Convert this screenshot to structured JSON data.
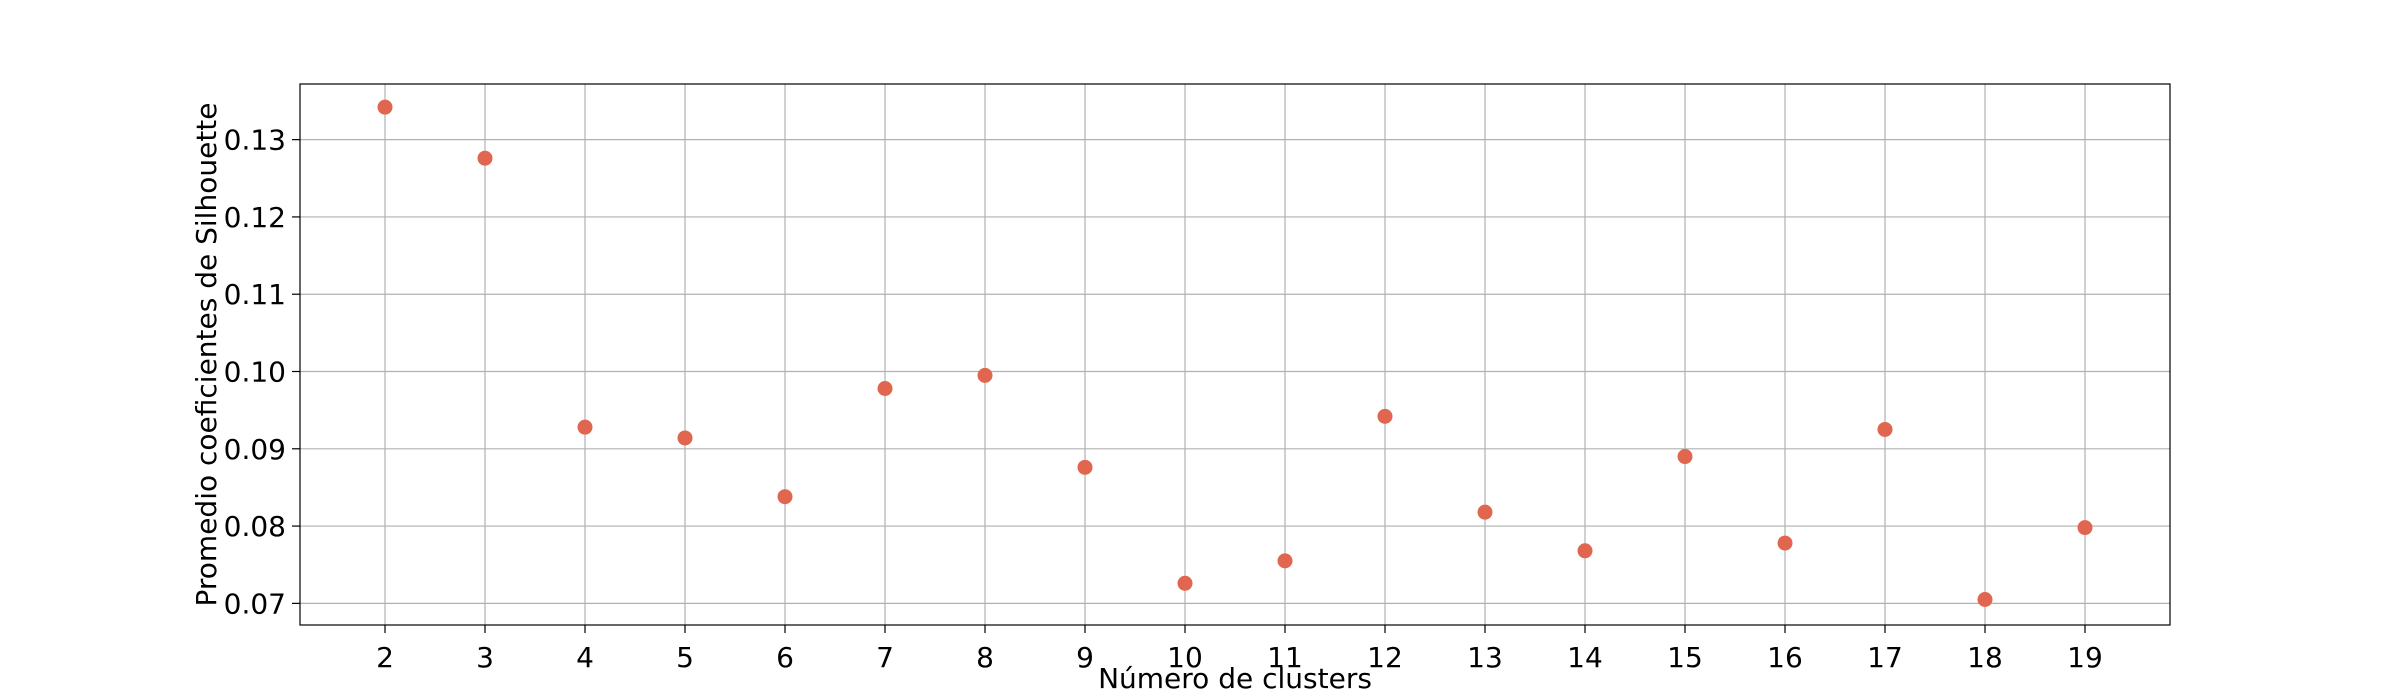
{
  "chart_data": {
    "type": "scatter",
    "title": "",
    "xlabel": "Número de clusters",
    "ylabel": "Promedio coeficientes de Silhouette",
    "x": [
      2,
      3,
      4,
      5,
      6,
      7,
      8,
      9,
      10,
      11,
      12,
      13,
      14,
      15,
      16,
      17,
      18,
      19
    ],
    "y": [
      0.1342,
      0.1276,
      0.0928,
      0.0914,
      0.0838,
      0.0978,
      0.0995,
      0.0876,
      0.0726,
      0.0755,
      0.0942,
      0.0818,
      0.0768,
      0.089,
      0.0778,
      0.0925,
      0.0705,
      0.0798
    ],
    "xticks": [
      "2",
      "3",
      "4",
      "5",
      "6",
      "7",
      "8",
      "9",
      "10",
      "11",
      "12",
      "13",
      "14",
      "15",
      "16",
      "17",
      "18",
      "19"
    ],
    "yticks": [
      "0.07",
      "0.08",
      "0.09",
      "0.10",
      "0.11",
      "0.12",
      "0.13"
    ],
    "xlim": [
      1.15,
      19.85
    ],
    "ylim": [
      0.0672,
      0.1372
    ],
    "grid": true,
    "legend": "none",
    "marker_color": "#e06650"
  }
}
